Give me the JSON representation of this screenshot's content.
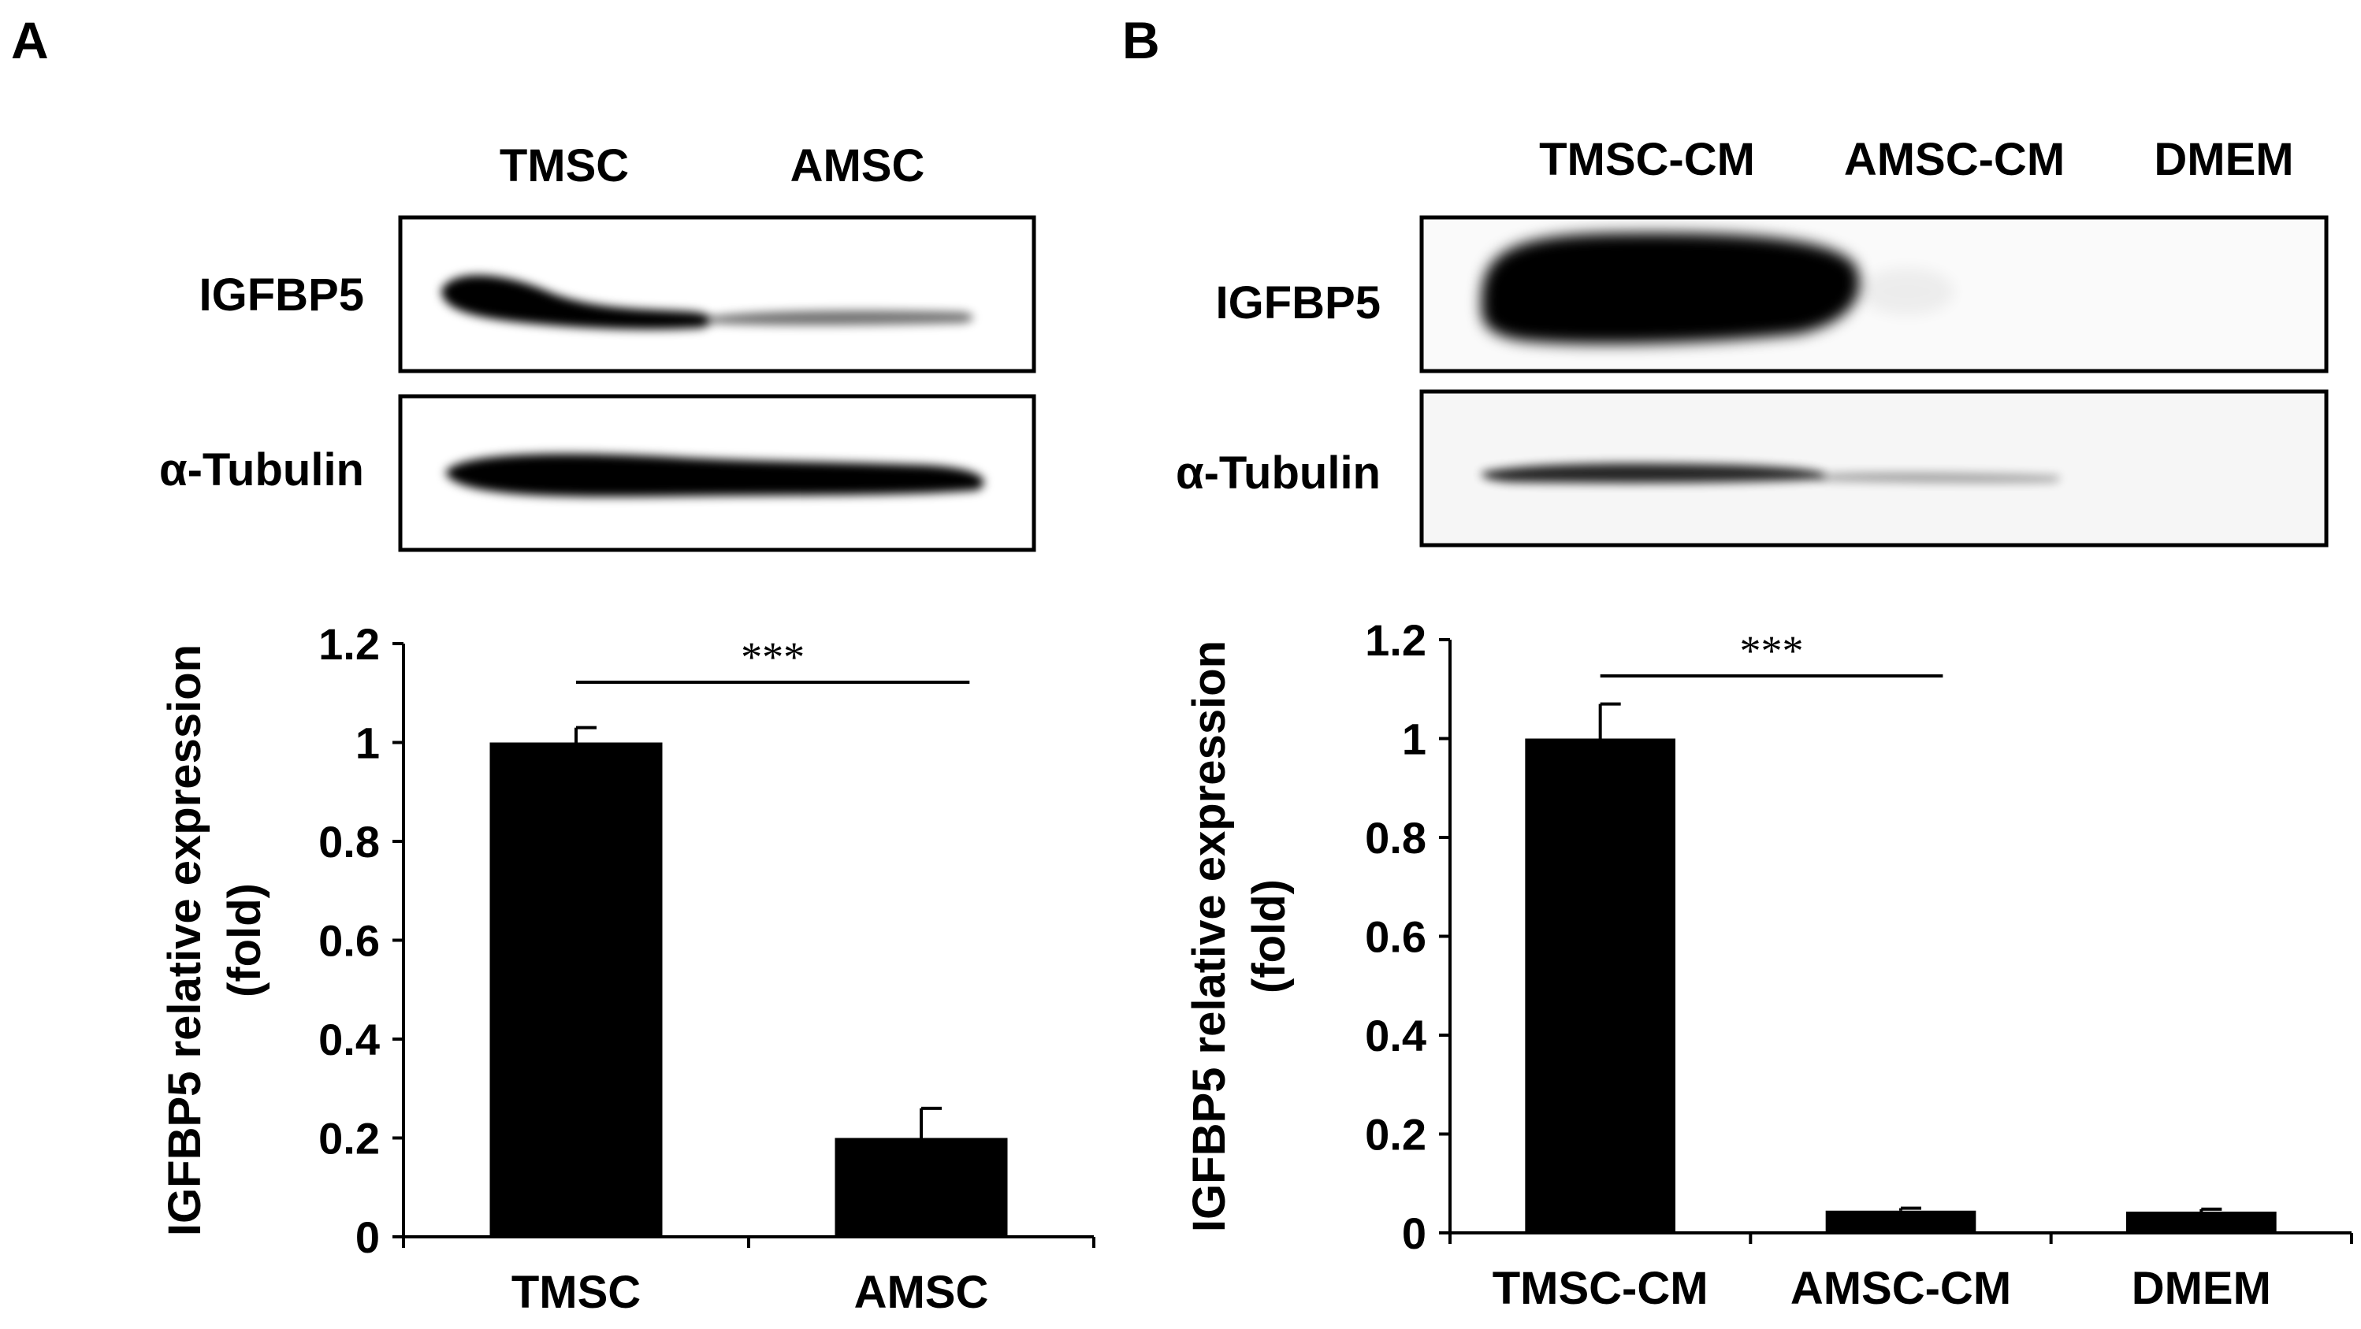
{
  "panels": [
    {
      "letter": "A",
      "blot": {
        "lanes": [
          "TMSC",
          "AMSC"
        ],
        "rows": [
          {
            "label": "IGFBP5",
            "band_intensity": [
              1.0,
              0.2
            ]
          },
          {
            "label": "α-Tubulin",
            "band_intensity": [
              1.0,
              1.0
            ]
          }
        ]
      }
    },
    {
      "letter": "B",
      "blot": {
        "lanes": [
          "TMSC-CM",
          "AMSC-CM",
          "DMEM"
        ],
        "rows": [
          {
            "label": "IGFBP5",
            "band_intensity": [
              1.0,
              0.04,
              0.0
            ]
          },
          {
            "label": "α-Tubulin",
            "band_intensity": [
              0.6,
              0.25,
              0.0
            ]
          }
        ]
      }
    }
  ],
  "chart_data": [
    {
      "type": "bar",
      "categories": [
        "TMSC",
        "AMSC"
      ],
      "values": [
        1.0,
        0.2
      ],
      "errors": [
        0.03,
        0.06
      ],
      "ylabel": "IGFBP5 relative expression",
      "ylabel2": "(fold)",
      "ylim": [
        0,
        1.2
      ],
      "yticks": [
        0,
        0.2,
        0.4,
        0.6,
        0.8,
        1,
        1.2
      ],
      "ytick_labels": [
        "0",
        "0.2",
        "0.4",
        "0.6",
        "0.8",
        "1",
        "1.2"
      ],
      "significance": {
        "label": "***",
        "from": 0,
        "to": 1
      },
      "bar_color": "#000000"
    },
    {
      "type": "bar",
      "categories": [
        "TMSC-CM",
        "AMSC-CM",
        "DMEM"
      ],
      "values": [
        1.0,
        0.045,
        0.043
      ],
      "errors": [
        0.07,
        0.005,
        0.005
      ],
      "ylabel": "IGFBP5 relative expression",
      "ylabel2": "(fold)",
      "ylim": [
        0,
        1.2
      ],
      "yticks": [
        0,
        0.2,
        0.4,
        0.6,
        0.8,
        1,
        1.2
      ],
      "ytick_labels": [
        "0",
        "0.2",
        "0.4",
        "0.6",
        "0.8",
        "1",
        "1.2"
      ],
      "significance": {
        "label": "***",
        "from": 0,
        "to": 1
      },
      "bar_color": "#000000"
    }
  ]
}
